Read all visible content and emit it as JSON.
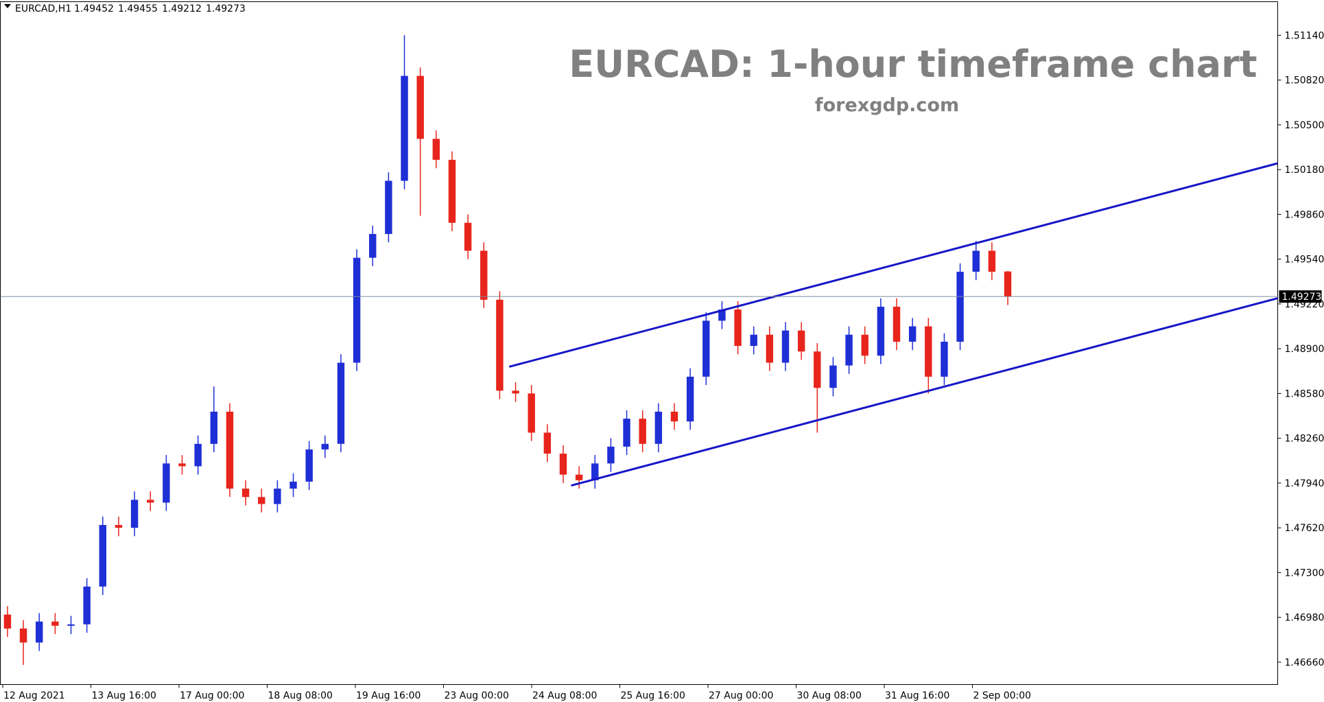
{
  "chart_data": {
    "type": "candlestick",
    "symbol": "EURCAD,H1",
    "title": "EURCAD: 1-hour timeframe chart",
    "subtitle": "forexgdp.com",
    "x_labels": [
      "12 Aug 2021",
      "13 Aug 16:00",
      "17 Aug 00:00",
      "18 Aug 08:00",
      "19 Aug 16:00",
      "23 Aug 00:00",
      "24 Aug 08:00",
      "25 Aug 16:00",
      "27 Aug 00:00",
      "30 Aug 08:00",
      "31 Aug 16:00",
      "2 Sep 00:00"
    ],
    "open": [
      1.47,
      1.469,
      1.468,
      1.4695,
      1.4692,
      1.4693,
      1.472,
      1.4764,
      1.4762,
      1.4782,
      1.478,
      1.4808,
      1.4806,
      1.4822,
      1.4845,
      1.479,
      1.4784,
      1.4779,
      1.479,
      1.4795,
      1.4818,
      1.4822,
      1.488,
      1.4955,
      1.4972,
      1.501,
      1.5085,
      1.504,
      1.5025,
      1.498,
      1.496,
      1.4925,
      1.486,
      1.4858,
      1.483,
      1.4815,
      1.48,
      1.4796,
      1.4808,
      1.482,
      1.484,
      1.4822,
      1.4845,
      1.4838,
      1.487,
      1.491,
      1.4918,
      1.4892,
      1.49,
      1.488,
      1.4903,
      1.4888,
      1.4862,
      1.4878,
      1.49,
      1.4885,
      1.492,
      1.4895,
      1.4906,
      1.487,
      1.4895,
      1.4945,
      1.496,
      1.49452
    ],
    "high": [
      1.4706,
      1.4696,
      1.4701,
      1.4701,
      1.4699,
      1.4726,
      1.477,
      1.477,
      1.4788,
      1.4788,
      1.4814,
      1.4814,
      1.4828,
      1.4863,
      1.4851,
      1.4796,
      1.479,
      1.4796,
      1.4801,
      1.4824,
      1.4828,
      1.4886,
      1.4961,
      1.4978,
      1.5016,
      1.5114,
      1.5091,
      1.5046,
      1.5031,
      1.4986,
      1.4966,
      1.4931,
      1.4866,
      1.4864,
      1.4836,
      1.4821,
      1.4806,
      1.4814,
      1.4826,
      1.4846,
      1.4846,
      1.4851,
      1.4851,
      1.4876,
      1.4916,
      1.4924,
      1.4924,
      1.4906,
      1.4906,
      1.4909,
      1.4909,
      1.4894,
      1.4884,
      1.4906,
      1.4906,
      1.4926,
      1.4926,
      1.4912,
      1.4912,
      1.4901,
      1.4951,
      1.4967,
      1.4966,
      1.49455
    ],
    "low": [
      1.4684,
      1.4664,
      1.4674,
      1.4686,
      1.4686,
      1.4687,
      1.4714,
      1.4756,
      1.4756,
      1.4774,
      1.4774,
      1.48,
      1.48,
      1.4816,
      1.4784,
      1.4778,
      1.4773,
      1.4773,
      1.4784,
      1.4789,
      1.4812,
      1.4816,
      1.4874,
      1.4949,
      1.4966,
      1.5004,
      1.4985,
      1.5019,
      1.4974,
      1.4954,
      1.4919,
      1.4854,
      1.4852,
      1.4824,
      1.4809,
      1.4794,
      1.479,
      1.479,
      1.4802,
      1.4814,
      1.4816,
      1.4816,
      1.4832,
      1.4832,
      1.4864,
      1.4904,
      1.4886,
      1.4886,
      1.4874,
      1.4874,
      1.4882,
      1.483,
      1.4856,
      1.4872,
      1.4879,
      1.4879,
      1.4889,
      1.4889,
      1.4858,
      1.4864,
      1.4889,
      1.4939,
      1.4939,
      1.49212
    ],
    "close": [
      1.469,
      1.468,
      1.4695,
      1.4692,
      1.4693,
      1.472,
      1.4764,
      1.4762,
      1.4782,
      1.478,
      1.4808,
      1.4806,
      1.4822,
      1.4845,
      1.479,
      1.4784,
      1.4779,
      1.479,
      1.4795,
      1.4818,
      1.4822,
      1.488,
      1.4955,
      1.4972,
      1.501,
      1.5085,
      1.504,
      1.5025,
      1.498,
      1.496,
      1.4925,
      1.486,
      1.4858,
      1.483,
      1.4815,
      1.48,
      1.4796,
      1.4808,
      1.482,
      1.484,
      1.4822,
      1.4845,
      1.4838,
      1.487,
      1.491,
      1.4918,
      1.4892,
      1.49,
      1.488,
      1.4903,
      1.4888,
      1.4862,
      1.4878,
      1.49,
      1.4885,
      1.492,
      1.4895,
      1.4906,
      1.487,
      1.4895,
      1.4945,
      1.496,
      1.4945,
      1.49273
    ],
    "up_color": "#1f2fd6",
    "down_color": "#e8251c",
    "trendlines": [
      {
        "x": [
          31.6,
          80
        ],
        "y": [
          1.48771,
          1.50225
        ],
        "color": "#1616c8"
      },
      {
        "x": [
          35.5,
          80
        ],
        "y": [
          1.47922,
          1.49261
        ],
        "color": "#1616c8"
      }
    ],
    "price_line_color": "#7a8ca0",
    "xlim": [
      -0.45,
      80
    ],
    "ylim": [
      1.465,
      1.5138
    ],
    "yticks": [
      {
        "value": 1.5114,
        "label": "1.51140"
      },
      {
        "value": 1.5082,
        "label": "1.50820"
      },
      {
        "value": 1.505,
        "label": "1.50500"
      },
      {
        "value": 1.5018,
        "label": "1.50180"
      },
      {
        "value": 1.4986,
        "label": "1.49860"
      },
      {
        "value": 1.4954,
        "label": "1.49540"
      },
      {
        "value": 1.4922,
        "label": "1.49220"
      },
      {
        "value": 1.489,
        "label": "1.48900"
      },
      {
        "value": 1.4858,
        "label": "1.48580"
      },
      {
        "value": 1.4826,
        "label": "1.48260"
      },
      {
        "value": 1.4794,
        "label": "1.47940"
      },
      {
        "value": 1.4762,
        "label": "1.47620"
      },
      {
        "value": 1.473,
        "label": "1.47300"
      },
      {
        "value": 1.4698,
        "label": "1.46980"
      },
      {
        "value": 1.4666,
        "label": "1.46660"
      }
    ]
  }
}
